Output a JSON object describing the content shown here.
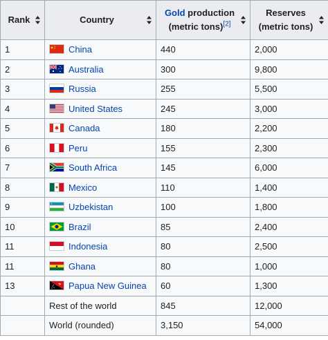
{
  "headers": {
    "rank": "Rank",
    "country": "Country",
    "gold_link": "Gold",
    "gold_rest": " production",
    "gold_units": "(metric tons)",
    "gold_ref": "[2]",
    "reserves": "Reserves",
    "reserves_units": "(metric tons)"
  },
  "rows": [
    {
      "rank": "1",
      "country": "China",
      "flag": "china-flag",
      "production": "440",
      "reserves": "2,000"
    },
    {
      "rank": "2",
      "country": "Australia",
      "flag": "australia-flag",
      "production": "300",
      "reserves": "9,800"
    },
    {
      "rank": "3",
      "country": "Russia",
      "flag": "russia-flag",
      "production": "255",
      "reserves": "5,500"
    },
    {
      "rank": "4",
      "country": "United States",
      "flag": "united-states-flag",
      "production": "245",
      "reserves": "3,000"
    },
    {
      "rank": "5",
      "country": "Canada",
      "flag": "canada-flag",
      "production": "180",
      "reserves": "2,200"
    },
    {
      "rank": "6",
      "country": "Peru",
      "flag": "peru-flag",
      "production": "155",
      "reserves": "2,300"
    },
    {
      "rank": "7",
      "country": "South Africa",
      "flag": "south-africa-flag",
      "production": "145",
      "reserves": "6,000"
    },
    {
      "rank": "8",
      "country": "Mexico",
      "flag": "mexico-flag",
      "production": "110",
      "reserves": "1,400"
    },
    {
      "rank": "9",
      "country": "Uzbekistan",
      "flag": "uzbekistan-flag",
      "production": "100",
      "reserves": "1,800"
    },
    {
      "rank": "10",
      "country": "Brazil",
      "flag": "brazil-flag",
      "production": "85",
      "reserves": "2,400"
    },
    {
      "rank": "11",
      "country": "Indonesia",
      "flag": "indonesia-flag",
      "production": "80",
      "reserves": "2,500"
    },
    {
      "rank": "11",
      "country": "Ghana",
      "flag": "ghana-flag",
      "production": "80",
      "reserves": "1,000"
    },
    {
      "rank": "13",
      "country": "Papua New Guinea",
      "flag": "papua-new-guinea-flag",
      "production": "60",
      "reserves": "1,300"
    }
  ],
  "summary_rows": [
    {
      "rank": "",
      "label": "Rest of the world",
      "production": "845",
      "reserves": "12,000"
    },
    {
      "rank": "",
      "label": "World (rounded)",
      "production": "3,150",
      "reserves": "54,000"
    }
  ],
  "colors": {
    "link": "#0645ad",
    "header_bg": "#eaecf0",
    "cell_bg": "#f8f9fa",
    "border": "#a2a9b1"
  }
}
